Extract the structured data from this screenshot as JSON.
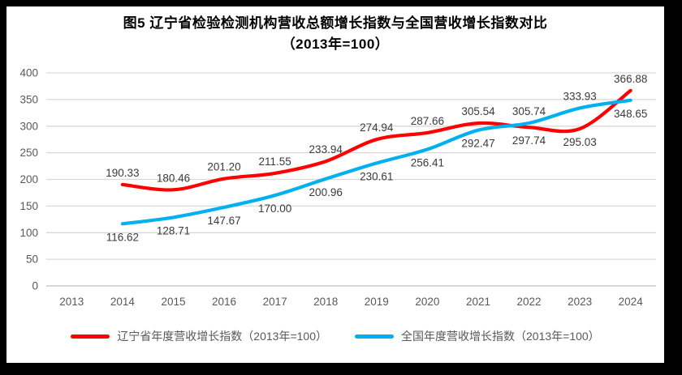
{
  "window": {
    "background": "#ffffff",
    "frame_border_color": "#000000"
  },
  "title": {
    "line1": "图5  辽宁省检验检测机构营收总额增长指数与全国营收增长指数对比",
    "line2": "（2013年=100）"
  },
  "chart_data": {
    "type": "line",
    "title": "图5 辽宁省检验检测机构营收总额增长指数与全国营收增长指数对比（2013年=100）",
    "categories": [
      "2013",
      "2014",
      "2015",
      "2016",
      "2017",
      "2018",
      "2019",
      "2020",
      "2021",
      "2022",
      "2023",
      "2024"
    ],
    "series": [
      {
        "name": "辽宁省年度营收增长指数（2013年=100）",
        "color": "#ff0000",
        "values": [
          null,
          190.33,
          180.46,
          201.2,
          211.55,
          233.94,
          274.94,
          287.66,
          305.54,
          297.74,
          295.03,
          366.88
        ],
        "label_sides": [
          "",
          "above",
          "above",
          "above",
          "above",
          "above",
          "above",
          "above",
          "above",
          "below",
          "below",
          "above"
        ]
      },
      {
        "name": "全国年度营收增长指数（2013年=100）",
        "color": "#00b0f0",
        "values": [
          null,
          116.62,
          128.71,
          147.67,
          170.0,
          200.96,
          230.61,
          256.41,
          292.47,
          305.74,
          333.93,
          348.65
        ],
        "label_sides": [
          "",
          "below",
          "below",
          "below",
          "below",
          "below",
          "below",
          "below",
          "below",
          "above",
          "above",
          "below"
        ]
      }
    ],
    "ylim": [
      0,
      400
    ],
    "ytick_step": 50,
    "grid": true,
    "gridline_color": "#d9d9d9",
    "baseline_color": "#bfbfbf",
    "legend_position": "bottom",
    "data_labels_decimals": 2
  }
}
